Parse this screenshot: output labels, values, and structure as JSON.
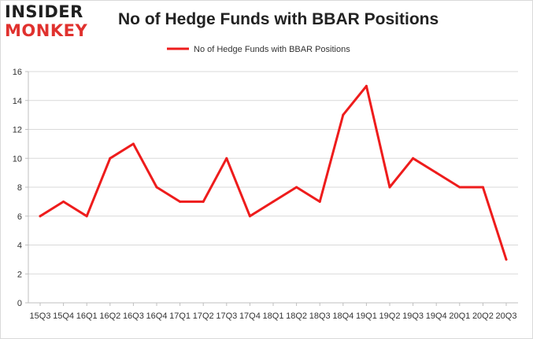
{
  "logo": {
    "line1": "INSIDER",
    "line2": "MONKEY"
  },
  "chart_data": {
    "type": "line",
    "title": "No of Hedge Funds with BBAR Positions",
    "xlabel": "",
    "ylabel": "",
    "categories": [
      "15Q3",
      "15Q4",
      "16Q1",
      "16Q2",
      "16Q3",
      "16Q4",
      "17Q1",
      "17Q2",
      "17Q3",
      "17Q4",
      "18Q1",
      "18Q2",
      "18Q3",
      "18Q4",
      "19Q1",
      "19Q2",
      "19Q3",
      "19Q4",
      "20Q1",
      "20Q2",
      "20Q3"
    ],
    "series": [
      {
        "name": "No of Hedge Funds with BBAR Positions",
        "color": "#ee1c1c",
        "values": [
          6,
          7,
          6,
          10,
          11,
          8,
          7,
          7,
          10,
          6,
          7,
          8,
          7,
          13,
          15,
          8,
          10,
          9,
          8,
          8,
          3
        ]
      }
    ],
    "ylim": [
      0,
      16
    ],
    "yticks": [
      0,
      2,
      4,
      6,
      8,
      10,
      12,
      14,
      16
    ],
    "grid": true,
    "legend": "top-center"
  }
}
